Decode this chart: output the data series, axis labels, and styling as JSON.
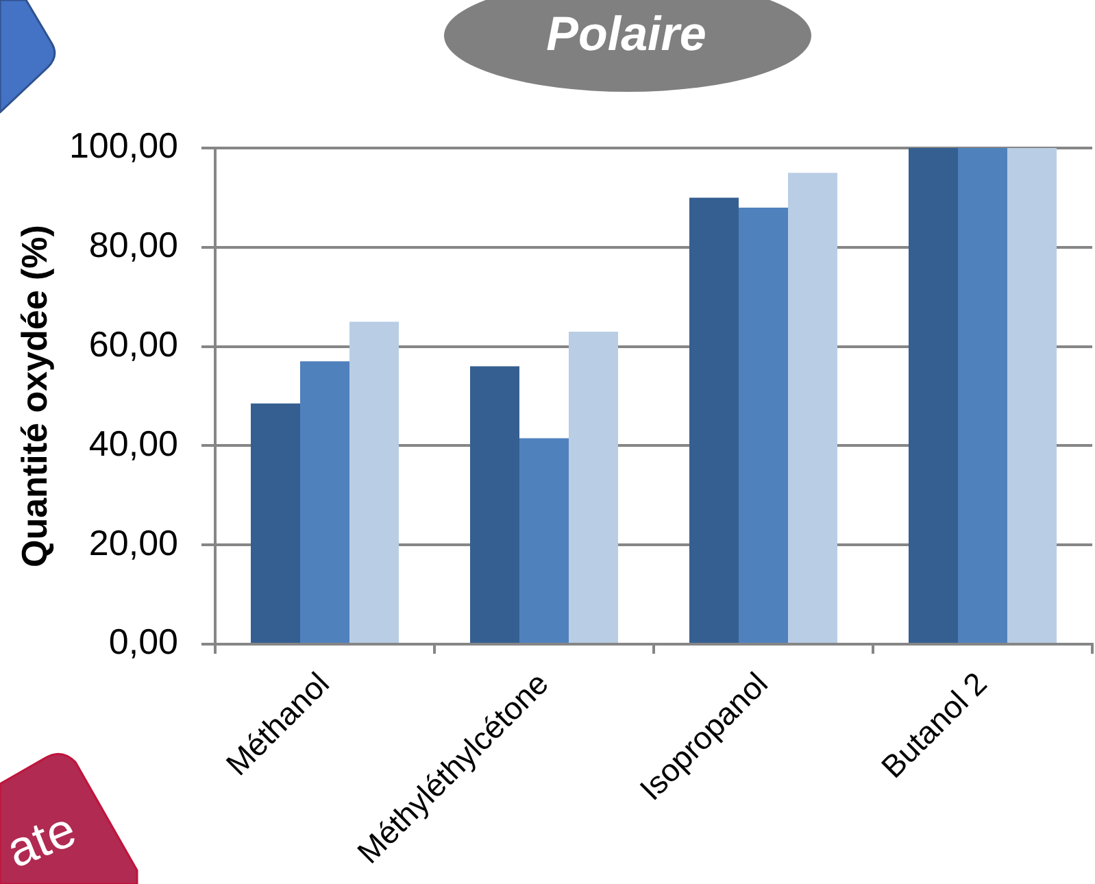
{
  "chart_data": {
    "type": "bar",
    "title": "Polaire",
    "ylabel": "Quantité oxydée (%)",
    "categories": [
      "Méthanol",
      "Méthyléthylcétone",
      "Isopropanol",
      "Butanol 2"
    ],
    "series": [
      {
        "color": "#355f91",
        "values": [
          48.5,
          56,
          90,
          100
        ]
      },
      {
        "color": "#4f81bd",
        "values": [
          57,
          41.5,
          88,
          100
        ]
      },
      {
        "color": "#b9cde5",
        "values": [
          65,
          63,
          95,
          100
        ]
      }
    ],
    "ylim": [
      0,
      100
    ],
    "yticks": [
      {
        "value": 0,
        "label": "0,00"
      },
      {
        "value": 20,
        "label": "20,00"
      },
      {
        "value": 40,
        "label": "40,00"
      },
      {
        "value": 60,
        "label": "60,00"
      },
      {
        "value": 80,
        "label": "80,00"
      },
      {
        "value": 100,
        "label": "100,00"
      }
    ],
    "grid": "y",
    "annotations": [
      "ate"
    ]
  }
}
